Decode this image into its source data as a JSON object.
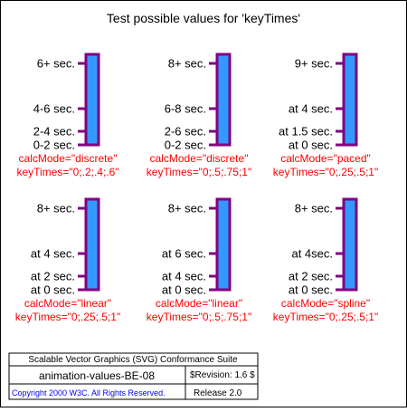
{
  "title": "Test possible values for 'keyTimes'",
  "colors": {
    "bar_fill": "#3399ff",
    "bar_stroke": "#800080",
    "tick": "#800080",
    "caption": "#ff0000",
    "label": "#000000",
    "frame": "#000000",
    "copyright": "#0000ff"
  },
  "tests": [
    {
      "labels": [
        "6+ sec.",
        "4-6 sec.",
        "2-4 sec.",
        "0-2 sec."
      ],
      "calc_mode": "calcMode=\"discrete\"",
      "key_times": "keyTimes=\"0;.2;.4;.6\""
    },
    {
      "labels": [
        "8+ sec.",
        "6-8 sec.",
        "2-6 sec.",
        "0-2 sec."
      ],
      "calc_mode": "calcMode=\"discrete\"",
      "key_times": "keyTimes=\"0;.5;.75;1\""
    },
    {
      "labels": [
        "9+ sec.",
        "at 4 sec.",
        "at 1.5 sec.",
        "at 0 sec."
      ],
      "calc_mode": "calcMode=\"paced\"",
      "key_times": "keyTimes=\"0;.25;.5;1\""
    },
    {
      "labels": [
        "8+ sec.",
        "at 4 sec.",
        "at 2 sec.",
        "at 0 sec."
      ],
      "calc_mode": "calcMode=\"linear\"",
      "key_times": "keyTimes=\"0;.25;.5;1\""
    },
    {
      "labels": [
        "8+ sec.",
        "at 6 sec.",
        "at 4 sec.",
        "at 0 sec."
      ],
      "calc_mode": "calcMode=\"linear\"",
      "key_times": "keyTimes=\"0;.5;.75;1\""
    },
    {
      "labels": [
        "8+ sec.",
        "at 4sec.",
        "at 2 sec.",
        "at 0 sec."
      ],
      "calc_mode": "calcMode=\"spline\"",
      "key_times": "keyTimes=\"0;.25;.5;1\""
    }
  ],
  "footer": {
    "suite": "Scalable Vector Graphics (SVG) Conformance Suite",
    "test_name": "animation-values-BE-08",
    "revision": "$Revision: 1.6 $",
    "copyright": "Copyright 2000 W3C. All Rights Reserved.",
    "release": "Release 2.0"
  }
}
